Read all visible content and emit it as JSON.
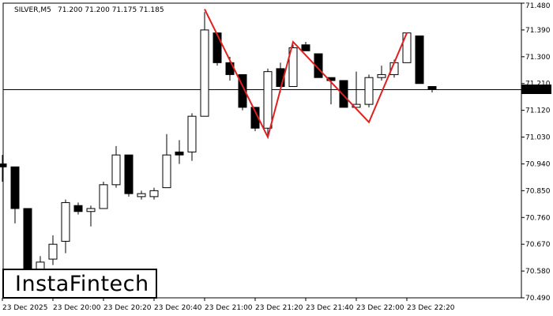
{
  "header": {
    "symbol": "SILVER,M5",
    "ohlc": "71.200 71.200 71.175 71.185"
  },
  "logo": {
    "text": "InstaFintech"
  },
  "colors": {
    "bull": "#ffffff",
    "bear": "#000000",
    "pattern": "#e02020",
    "price_tag_bg": "#000000",
    "price_tag_text": "#ffffff"
  },
  "chart_data": {
    "type": "candlestick",
    "title": "SILVER,M5",
    "ylim": [
      70.49,
      71.48
    ],
    "y_ticks": [
      "71.480",
      "71.390",
      "71.300",
      "71.210",
      "71.120",
      "71.030",
      "70.940",
      "70.850",
      "70.760",
      "70.670",
      "70.580",
      "70.490"
    ],
    "x_ticks": [
      "23 Dec 2025",
      "23 Dec 20:00",
      "23 Dec 20:20",
      "23 Dec 20:40",
      "23 Dec 21:00",
      "23 Dec 21:20",
      "23 Dec 21:40",
      "23 Dec 22:00",
      "23 Dec 22:20"
    ],
    "current_price": "71.185",
    "candles": [
      {
        "o": 70.94,
        "h": 70.97,
        "l": 70.88,
        "c": 70.93
      },
      {
        "o": 70.93,
        "h": 70.93,
        "l": 70.74,
        "c": 70.79
      },
      {
        "o": 70.79,
        "h": 70.79,
        "l": 70.52,
        "c": 70.52
      },
      {
        "o": 70.58,
        "h": 70.63,
        "l": 70.55,
        "c": 70.61
      },
      {
        "o": 70.62,
        "h": 70.7,
        "l": 70.6,
        "c": 70.67
      },
      {
        "o": 70.68,
        "h": 70.82,
        "l": 70.64,
        "c": 70.81
      },
      {
        "o": 70.8,
        "h": 70.81,
        "l": 70.77,
        "c": 70.78
      },
      {
        "o": 70.78,
        "h": 70.8,
        "l": 70.73,
        "c": 70.79
      },
      {
        "o": 70.79,
        "h": 70.88,
        "l": 70.79,
        "c": 70.87
      },
      {
        "o": 70.87,
        "h": 71.0,
        "l": 70.86,
        "c": 70.97
      },
      {
        "o": 70.97,
        "h": 70.97,
        "l": 70.83,
        "c": 70.84
      },
      {
        "o": 70.83,
        "h": 70.85,
        "l": 70.82,
        "c": 70.84
      },
      {
        "o": 70.83,
        "h": 70.86,
        "l": 70.82,
        "c": 70.85
      },
      {
        "o": 70.86,
        "h": 71.04,
        "l": 70.86,
        "c": 70.97
      },
      {
        "o": 70.98,
        "h": 71.02,
        "l": 70.94,
        "c": 70.97
      },
      {
        "o": 70.98,
        "h": 71.11,
        "l": 70.95,
        "c": 71.1
      },
      {
        "o": 71.1,
        "h": 71.45,
        "l": 71.1,
        "c": 71.39
      },
      {
        "o": 71.38,
        "h": 71.38,
        "l": 71.27,
        "c": 71.28
      },
      {
        "o": 71.28,
        "h": 71.3,
        "l": 71.22,
        "c": 71.24
      },
      {
        "o": 71.24,
        "h": 71.24,
        "l": 71.12,
        "c": 71.13
      },
      {
        "o": 71.13,
        "h": 71.13,
        "l": 71.05,
        "c": 71.06
      },
      {
        "o": 71.06,
        "h": 71.26,
        "l": 71.03,
        "c": 71.25
      },
      {
        "o": 71.26,
        "h": 71.28,
        "l": 71.18,
        "c": 71.2
      },
      {
        "o": 71.2,
        "h": 71.34,
        "l": 71.2,
        "c": 71.33
      },
      {
        "o": 71.34,
        "h": 71.35,
        "l": 71.32,
        "c": 71.32
      },
      {
        "o": 71.31,
        "h": 71.31,
        "l": 71.23,
        "c": 71.23
      },
      {
        "o": 71.23,
        "h": 71.23,
        "l": 71.14,
        "c": 71.22
      },
      {
        "o": 71.22,
        "h": 71.22,
        "l": 71.13,
        "c": 71.13
      },
      {
        "o": 71.13,
        "h": 71.25,
        "l": 71.13,
        "c": 71.14
      },
      {
        "o": 71.14,
        "h": 71.24,
        "l": 71.13,
        "c": 71.23
      },
      {
        "o": 71.23,
        "h": 71.27,
        "l": 71.22,
        "c": 71.24
      },
      {
        "o": 71.24,
        "h": 71.29,
        "l": 71.23,
        "c": 71.28
      },
      {
        "o": 71.28,
        "h": 71.38,
        "l": 71.28,
        "c": 71.38
      },
      {
        "o": 71.37,
        "h": 71.37,
        "l": 71.21,
        "c": 71.21
      },
      {
        "o": 71.2,
        "h": 71.2,
        "l": 71.18,
        "c": 71.19
      }
    ],
    "pattern_line": [
      {
        "i": 16,
        "y": 71.46
      },
      {
        "i": 21,
        "y": 71.03
      },
      {
        "i": 23,
        "y": 71.35
      },
      {
        "i": 29,
        "y": 71.08
      },
      {
        "i": 32,
        "y": 71.38
      }
    ]
  }
}
